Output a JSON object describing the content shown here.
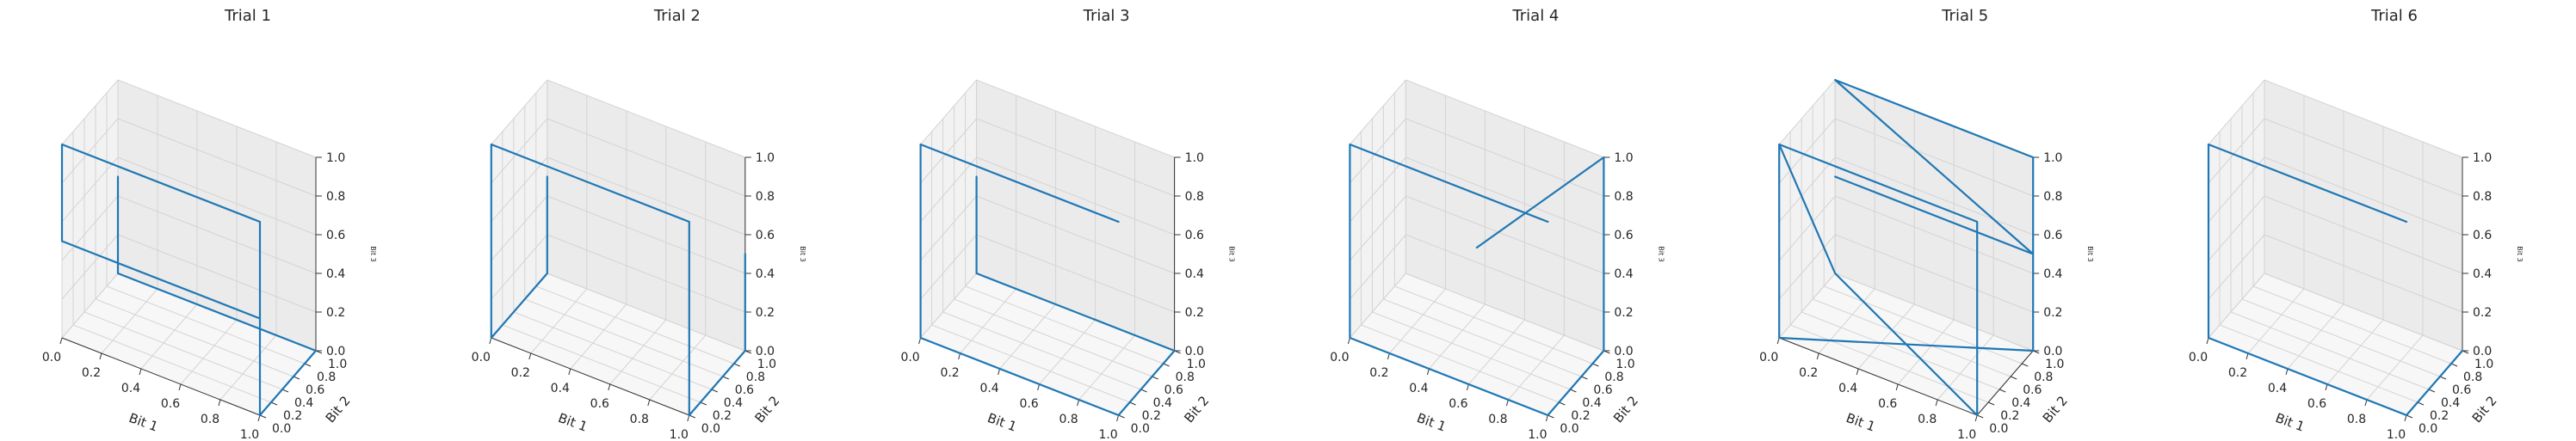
{
  "chart_data": [
    {
      "type": "line3d",
      "title": "Trial 1",
      "xlabel": "Bit 1",
      "ylabel": "Bit 2",
      "zlabel": "Bit 3",
      "xlim": [
        0,
        1
      ],
      "ylim": [
        0,
        1
      ],
      "zlim": [
        0,
        1
      ],
      "xticks": [
        "0.0",
        "0.2",
        "0.4",
        "0.6",
        "0.8",
        "1.0"
      ],
      "yticks": [
        "0.0",
        "0.2",
        "0.4",
        "0.6",
        "0.8",
        "1.0"
      ],
      "zticks": [
        "0.0",
        "0.2",
        "0.4",
        "0.6",
        "0.8",
        "1.0"
      ],
      "grid": true,
      "points": [
        [
          0,
          1,
          0.5
        ],
        [
          0,
          1,
          0
        ],
        [
          1,
          1,
          0
        ],
        [
          1,
          0,
          0
        ],
        [
          1,
          0,
          1
        ],
        [
          0,
          0,
          1
        ],
        [
          0,
          0,
          0.5
        ],
        [
          1,
          0,
          0.5
        ]
      ]
    },
    {
      "type": "line3d",
      "title": "Trial 2",
      "xlabel": "Bit 1",
      "ylabel": "Bit 2",
      "zlabel": "Bit 3",
      "xlim": [
        0,
        1
      ],
      "ylim": [
        0,
        1
      ],
      "zlim": [
        0,
        1
      ],
      "xticks": [
        "0.0",
        "0.2",
        "0.4",
        "0.6",
        "0.8",
        "1.0"
      ],
      "yticks": [
        "0.0",
        "0.2",
        "0.4",
        "0.6",
        "0.8",
        "1.0"
      ],
      "zticks": [
        "0.0",
        "0.2",
        "0.4",
        "0.6",
        "0.8",
        "1.0"
      ],
      "grid": true,
      "points": [
        [
          1,
          1,
          0.5
        ],
        [
          1,
          1,
          0
        ],
        [
          1,
          0,
          0
        ],
        [
          1,
          0,
          1
        ],
        [
          0,
          0,
          1
        ],
        [
          0,
          0,
          0
        ],
        [
          0,
          1,
          0
        ],
        [
          0,
          1,
          0.5
        ]
      ]
    },
    {
      "type": "line3d",
      "title": "Trial 3",
      "xlabel": "Bit 1",
      "ylabel": "Bit 2",
      "zlabel": "Bit 3",
      "xlim": [
        0,
        1
      ],
      "ylim": [
        0,
        1
      ],
      "zlim": [
        0,
        1
      ],
      "xticks": [
        "0.0",
        "0.2",
        "0.4",
        "0.6",
        "0.8",
        "1.0"
      ],
      "yticks": [
        "0.0",
        "0.2",
        "0.4",
        "0.6",
        "0.8",
        "1.0"
      ],
      "zticks": [
        "0.0",
        "0.2",
        "0.4",
        "0.6",
        "0.8",
        "1.0"
      ],
      "grid": true,
      "points": [
        [
          0,
          1,
          0.5
        ],
        [
          0,
          1,
          0
        ],
        [
          1,
          1,
          0
        ],
        [
          1,
          0,
          0
        ],
        [
          0,
          0,
          0
        ],
        [
          0,
          0,
          1
        ],
        [
          1,
          0,
          1
        ]
      ]
    },
    {
      "type": "line3d",
      "title": "Trial 4",
      "xlabel": "Bit 1",
      "ylabel": "Bit 2",
      "zlabel": "Bit 3",
      "xlim": [
        0,
        1
      ],
      "ylim": [
        0,
        1
      ],
      "zlim": [
        0,
        1
      ],
      "xticks": [
        "0.0",
        "0.2",
        "0.4",
        "0.6",
        "0.8",
        "1.0"
      ],
      "yticks": [
        "0.0",
        "0.2",
        "0.4",
        "0.6",
        "0.8",
        "1.0"
      ],
      "zticks": [
        "0.0",
        "0.2",
        "0.4",
        "0.6",
        "0.8",
        "1.0"
      ],
      "grid": true,
      "points": [
        [
          0.5,
          0.5,
          0.5
        ],
        [
          1,
          1,
          1
        ],
        [
          1,
          1,
          0
        ],
        [
          1,
          0,
          0
        ],
        [
          0,
          0,
          0
        ],
        [
          0,
          0,
          1
        ],
        [
          1,
          0,
          1
        ]
      ]
    },
    {
      "type": "line3d",
      "title": "Trial 5",
      "xlabel": "Bit 1",
      "ylabel": "Bit 2",
      "zlabel": "Bit 3",
      "xlim": [
        0,
        1
      ],
      "ylim": [
        0,
        1
      ],
      "zlim": [
        0,
        1
      ],
      "xticks": [
        "0.0",
        "0.2",
        "0.4",
        "0.6",
        "0.8",
        "1.0"
      ],
      "yticks": [
        "0.0",
        "0.2",
        "0.4",
        "0.6",
        "0.8",
        "1.0"
      ],
      "zticks": [
        "0.0",
        "0.2",
        "0.4",
        "0.6",
        "0.8",
        "1.0"
      ],
      "grid": true,
      "points": [
        [
          0,
          1,
          0.5
        ],
        [
          1,
          1,
          0.5
        ],
        [
          0,
          1,
          1
        ],
        [
          1,
          1,
          1
        ],
        [
          1,
          1,
          0
        ],
        [
          0,
          0,
          0
        ],
        [
          0,
          0,
          1
        ],
        [
          0,
          1,
          0
        ],
        [
          1,
          0,
          0
        ],
        [
          1,
          0,
          1
        ],
        [
          0,
          0,
          1
        ]
      ]
    },
    {
      "type": "line3d",
      "title": "Trial 6",
      "xlabel": "Bit 1",
      "ylabel": "Bit 2",
      "zlabel": "Bit 3",
      "xlim": [
        0,
        1
      ],
      "ylim": [
        0,
        1
      ],
      "zlim": [
        0,
        1
      ],
      "xticks": [
        "0.0",
        "0.2",
        "0.4",
        "0.6",
        "0.8",
        "1.0"
      ],
      "yticks": [
        "0.0",
        "0.2",
        "0.4",
        "0.6",
        "0.8",
        "1.0"
      ],
      "zticks": [
        "0.0",
        "0.2",
        "0.4",
        "0.6",
        "0.8",
        "1.0"
      ],
      "grid": true,
      "points": [
        [
          1,
          0,
          1
        ],
        [
          0,
          0,
          1
        ],
        [
          0,
          0,
          0.5
        ],
        [
          0,
          0,
          0
        ],
        [
          1,
          0,
          0
        ],
        [
          1,
          1,
          0
        ]
      ]
    }
  ],
  "colors": {
    "line": "#1f77b4",
    "pane_back": "#ebebeb",
    "pane_side": "#f2f2f2",
    "pane_floor": "#f7f7f7",
    "grid": "#d4d4d4",
    "text": "#262626"
  }
}
